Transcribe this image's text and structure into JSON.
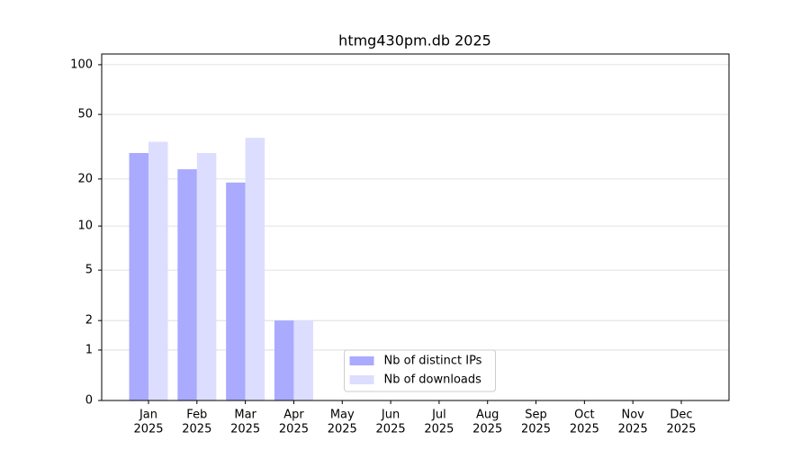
{
  "chart_data": {
    "type": "bar",
    "title": "htmg430pm.db 2025",
    "yscale": "log1p",
    "categories": [
      [
        "Jan",
        "2025"
      ],
      [
        "Feb",
        "2025"
      ],
      [
        "Mar",
        "2025"
      ],
      [
        "Apr",
        "2025"
      ],
      [
        "May",
        "2025"
      ],
      [
        "Jun",
        "2025"
      ],
      [
        "Jul",
        "2025"
      ],
      [
        "Aug",
        "2025"
      ],
      [
        "Sep",
        "2025"
      ],
      [
        "Oct",
        "2025"
      ],
      [
        "Nov",
        "2025"
      ],
      [
        "Dec",
        "2025"
      ]
    ],
    "series": [
      {
        "name": "Nb of distinct IPs",
        "color": "#aaaaff",
        "values": [
          29,
          23,
          19,
          2,
          0,
          0,
          0,
          0,
          0,
          0,
          0,
          0
        ]
      },
      {
        "name": "Nb of downloads",
        "color": "#ddddff",
        "values": [
          34,
          29,
          36,
          2,
          0,
          0,
          0,
          0,
          0,
          0,
          0,
          0
        ]
      }
    ],
    "ylim": [
      0,
      116
    ],
    "yticks": [
      0,
      1,
      2,
      5,
      10,
      20,
      50,
      100
    ],
    "grid": true,
    "legend": "lower center"
  }
}
